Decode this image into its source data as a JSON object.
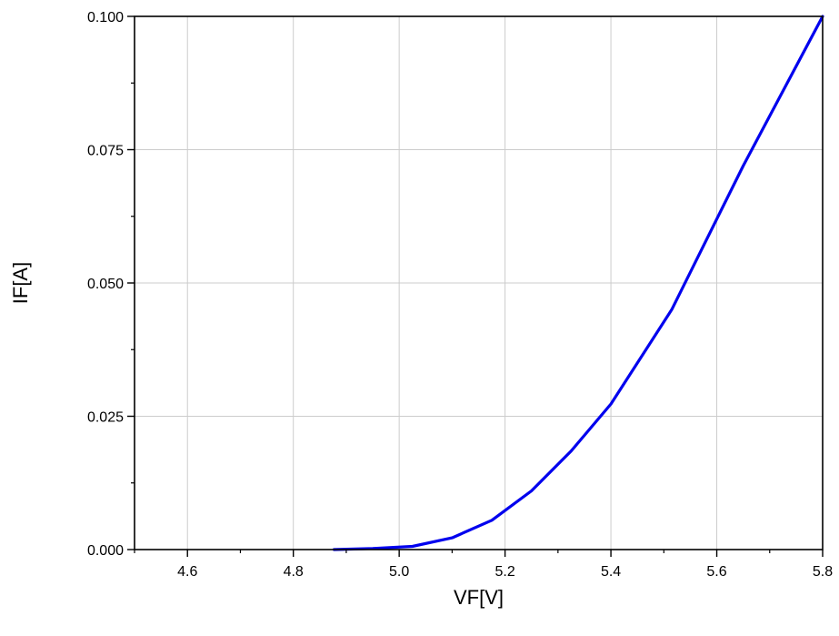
{
  "chart_data": {
    "type": "line",
    "title": "",
    "xlabel": "VF[V]",
    "ylabel": "IF[A]",
    "xlim": [
      4.5,
      5.8
    ],
    "ylim": [
      0.0,
      0.1
    ],
    "x_ticks": [
      4.6,
      4.8,
      5.0,
      5.2,
      5.4,
      5.6,
      5.8
    ],
    "x_tick_labels": [
      "4.6",
      "4.8",
      "5.0",
      "5.2",
      "5.4",
      "5.6",
      "5.8"
    ],
    "y_ticks": [
      0.0,
      0.025,
      0.05,
      0.075,
      0.1
    ],
    "y_tick_labels": [
      "0.000",
      "0.025",
      "0.050",
      "0.075",
      "0.100"
    ],
    "grid": true,
    "legend": "none",
    "series": [
      {
        "color": "#0000ee",
        "x": [
          4.877,
          4.95,
          5.025,
          5.1,
          5.175,
          5.25,
          5.325,
          5.4,
          5.515,
          5.65,
          5.8
        ],
        "y": [
          0.0,
          0.0002,
          0.0006,
          0.0022,
          0.0055,
          0.011,
          0.0185,
          0.0273,
          0.045,
          0.072,
          0.1
        ]
      }
    ]
  }
}
